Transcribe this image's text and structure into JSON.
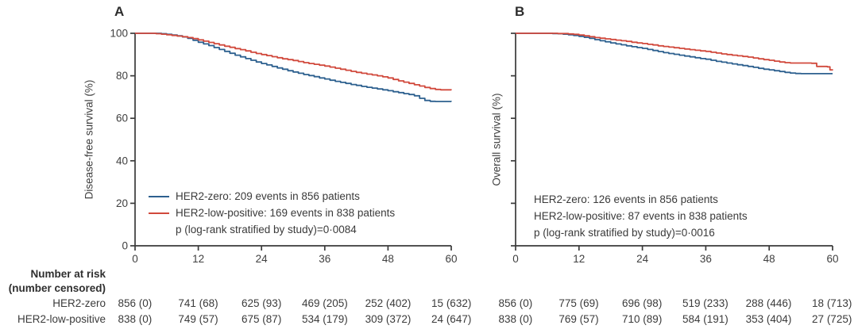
{
  "figure": {
    "panels": [
      {
        "label": "A",
        "y_axis_label": "Disease-free survival (%)",
        "legend": {
          "show_swatches": true,
          "items": [
            {
              "text": "HER2-zero: 209 events in 856 patients"
            },
            {
              "text": "HER2-low-positive: 169 events in 838 patients"
            }
          ],
          "p_text": "p (log-rank stratified by study)=0·0084"
        }
      },
      {
        "label": "B",
        "y_axis_label": "Overall survival (%)",
        "legend": {
          "show_swatches": false,
          "items": [
            {
              "text": "HER2-zero: 126 events in 856 patients"
            },
            {
              "text": "HER2-low-positive: 87 events in 838 patients"
            }
          ],
          "p_text": "p (log-rank stratified by study)=0·0016"
        }
      }
    ],
    "risk_table": {
      "header_line1": "Number at risk",
      "header_line2": "(number censored)",
      "row_labels": [
        "HER2-zero",
        "HER2-low-positive"
      ],
      "panels": [
        {
          "rows": [
            [
              "856 (0)",
              "741 (68)",
              "625 (93)",
              "469 (205)",
              "252 (402)",
              "15 (632)"
            ],
            [
              "838 (0)",
              "749 (57)",
              "675 (87)",
              "534 (179)",
              "309 (372)",
              "24 (647)"
            ]
          ]
        },
        {
          "rows": [
            [
              "856 (0)",
              "775 (69)",
              "696 (98)",
              "519 (233)",
              "288 (446)",
              "18 (713)"
            ],
            [
              "838 (0)",
              "769 (57)",
              "710 (89)",
              "584 (191)",
              "353 (404)",
              "27 (725)"
            ]
          ]
        }
      ]
    },
    "colors": {
      "axis": "#3a3a3a",
      "text": "#3b3b3b"
    }
  },
  "chart_data": [
    {
      "type": "line",
      "style": "kaplan-meier-step",
      "panel": "A",
      "title": "",
      "xlabel": "",
      "ylabel": "Disease-free survival (%)",
      "xlim": [
        0,
        60
      ],
      "ylim": [
        0,
        100
      ],
      "x_ticks": [
        0,
        12,
        24,
        36,
        48,
        60
      ],
      "y_ticks": [
        0,
        20,
        40,
        60,
        80,
        100
      ],
      "y_tick_labels_shown": true,
      "grid": false,
      "legend_position": "lower-left-inside",
      "p_value_text": "p (log-rank stratified by study)=0·0084",
      "series": [
        {
          "name": "HER2-zero",
          "color": "#2d608f",
          "events": 209,
          "n": 856,
          "points": [
            [
              0,
              100
            ],
            [
              5,
              99.8
            ],
            [
              6,
              99.5
            ],
            [
              7,
              99.2
            ],
            [
              8,
              98.8
            ],
            [
              9,
              98.3
            ],
            [
              10,
              97.6
            ],
            [
              11,
              96.7
            ],
            [
              12,
              95.8
            ],
            [
              13,
              95.0
            ],
            [
              14,
              94.2
            ],
            [
              15,
              93.3
            ],
            [
              16,
              92.4
            ],
            [
              17,
              91.5
            ],
            [
              18,
              90.6
            ],
            [
              19,
              89.7
            ],
            [
              20,
              88.9
            ],
            [
              21,
              88.1
            ],
            [
              22,
              87.3
            ],
            [
              23,
              86.5
            ],
            [
              24,
              85.8
            ],
            [
              25,
              85.1
            ],
            [
              26,
              84.4
            ],
            [
              27,
              83.7
            ],
            [
              28,
              83.1
            ],
            [
              29,
              82.4
            ],
            [
              30,
              81.8
            ],
            [
              31,
              81.2
            ],
            [
              32,
              80.6
            ],
            [
              33,
              80.1
            ],
            [
              34,
              79.6
            ],
            [
              35,
              79.0
            ],
            [
              36,
              78.5
            ],
            [
              37,
              77.9
            ],
            [
              38,
              77.4
            ],
            [
              39,
              76.9
            ],
            [
              40,
              76.4
            ],
            [
              41,
              75.9
            ],
            [
              42,
              75.5
            ],
            [
              43,
              75.0
            ],
            [
              44,
              74.6
            ],
            [
              45,
              74.2
            ],
            [
              46,
              73.8
            ],
            [
              47,
              73.4
            ],
            [
              48,
              73.0
            ],
            [
              49,
              72.5
            ],
            [
              50,
              72.1
            ],
            [
              51,
              71.6
            ],
            [
              52,
              71.2
            ],
            [
              53,
              70.6
            ],
            [
              54,
              69.4
            ],
            [
              55,
              68.4
            ],
            [
              56,
              68.0
            ],
            [
              57,
              67.9
            ],
            [
              60,
              67.8
            ]
          ]
        },
        {
          "name": "HER2-low-positive",
          "color": "#d1493c",
          "events": 169,
          "n": 838,
          "points": [
            [
              0,
              100
            ],
            [
              4,
              99.8
            ],
            [
              5,
              99.6
            ],
            [
              6,
              99.3
            ],
            [
              7,
              99.0
            ],
            [
              8,
              98.7
            ],
            [
              9,
              98.4
            ],
            [
              10,
              98.0
            ],
            [
              11,
              97.5
            ],
            [
              12,
              96.9
            ],
            [
              13,
              96.3
            ],
            [
              14,
              95.7
            ],
            [
              15,
              95.1
            ],
            [
              16,
              94.5
            ],
            [
              17,
              93.9
            ],
            [
              18,
              93.4
            ],
            [
              19,
              92.8
            ],
            [
              20,
              92.3
            ],
            [
              21,
              91.7
            ],
            [
              22,
              91.1
            ],
            [
              23,
              90.5
            ],
            [
              24,
              90.0
            ],
            [
              25,
              89.5
            ],
            [
              26,
              89.0
            ],
            [
              27,
              88.5
            ],
            [
              28,
              88.0
            ],
            [
              29,
              87.6
            ],
            [
              30,
              87.2
            ],
            [
              31,
              86.7
            ],
            [
              32,
              86.2
            ],
            [
              33,
              85.8
            ],
            [
              34,
              85.4
            ],
            [
              35,
              85.0
            ],
            [
              36,
              84.6
            ],
            [
              37,
              84.1
            ],
            [
              38,
              83.6
            ],
            [
              39,
              83.1
            ],
            [
              40,
              82.6
            ],
            [
              41,
              82.1
            ],
            [
              42,
              81.6
            ],
            [
              43,
              81.2
            ],
            [
              44,
              80.8
            ],
            [
              45,
              80.4
            ],
            [
              46,
              80.0
            ],
            [
              47,
              79.5
            ],
            [
              48,
              79.0
            ],
            [
              49,
              78.3
            ],
            [
              50,
              77.6
            ],
            [
              51,
              77.0
            ],
            [
              52,
              76.4
            ],
            [
              53,
              75.8
            ],
            [
              54,
              75.2
            ],
            [
              55,
              74.5
            ],
            [
              56,
              74.0
            ],
            [
              57,
              73.6
            ],
            [
              58,
              73.4
            ],
            [
              60,
              73.3
            ]
          ]
        }
      ]
    },
    {
      "type": "line",
      "style": "kaplan-meier-step",
      "panel": "B",
      "title": "",
      "xlabel": "",
      "ylabel": "Overall survival (%)",
      "xlim": [
        0,
        60
      ],
      "ylim": [
        0,
        100
      ],
      "x_ticks": [
        0,
        12,
        24,
        36,
        48,
        60
      ],
      "y_ticks": [
        0,
        20,
        40,
        60,
        80,
        100
      ],
      "y_tick_labels_shown": false,
      "grid": false,
      "legend_position": "lower-left-inside",
      "p_value_text": "p (log-rank stratified by study)=0·0016",
      "series": [
        {
          "name": "HER2-zero",
          "color": "#2d608f",
          "events": 126,
          "n": 856,
          "points": [
            [
              0,
              100
            ],
            [
              7,
              99.9
            ],
            [
              8,
              99.8
            ],
            [
              9,
              99.6
            ],
            [
              10,
              99.3
            ],
            [
              11,
              99.0
            ],
            [
              12,
              98.6
            ],
            [
              13,
              98.1
            ],
            [
              14,
              97.6
            ],
            [
              15,
              97.0
            ],
            [
              16,
              96.5
            ],
            [
              17,
              96.0
            ],
            [
              18,
              95.5
            ],
            [
              19,
              95.0
            ],
            [
              20,
              94.6
            ],
            [
              21,
              94.1
            ],
            [
              22,
              93.7
            ],
            [
              23,
              93.3
            ],
            [
              24,
              92.9
            ],
            [
              25,
              92.4
            ],
            [
              26,
              91.9
            ],
            [
              27,
              91.4
            ],
            [
              28,
              90.9
            ],
            [
              29,
              90.5
            ],
            [
              30,
              90.1
            ],
            [
              31,
              89.7
            ],
            [
              32,
              89.3
            ],
            [
              33,
              88.9
            ],
            [
              34,
              88.5
            ],
            [
              35,
              88.1
            ],
            [
              36,
              87.8
            ],
            [
              37,
              87.3
            ],
            [
              38,
              86.8
            ],
            [
              39,
              86.4
            ],
            [
              40,
              86.0
            ],
            [
              41,
              85.6
            ],
            [
              42,
              85.2
            ],
            [
              43,
              84.8
            ],
            [
              44,
              84.4
            ],
            [
              45,
              84.0
            ],
            [
              46,
              83.5
            ],
            [
              47,
              83.1
            ],
            [
              48,
              82.8
            ],
            [
              49,
              82.4
            ],
            [
              50,
              82.0
            ],
            [
              51,
              81.6
            ],
            [
              52,
              81.3
            ],
            [
              53,
              81.1
            ],
            [
              54,
              81.0
            ],
            [
              60,
              81.0
            ]
          ]
        },
        {
          "name": "HER2-low-positive",
          "color": "#d1493c",
          "events": 87,
          "n": 838,
          "points": [
            [
              0,
              100
            ],
            [
              8,
              99.9
            ],
            [
              10,
              99.7
            ],
            [
              11,
              99.5
            ],
            [
              12,
              99.2
            ],
            [
              13,
              98.8
            ],
            [
              14,
              98.4
            ],
            [
              15,
              98.0
            ],
            [
              16,
              97.7
            ],
            [
              17,
              97.4
            ],
            [
              18,
              97.1
            ],
            [
              19,
              96.8
            ],
            [
              20,
              96.5
            ],
            [
              21,
              96.2
            ],
            [
              22,
              95.8
            ],
            [
              23,
              95.5
            ],
            [
              24,
              95.2
            ],
            [
              25,
              94.8
            ],
            [
              26,
              94.5
            ],
            [
              27,
              94.1
            ],
            [
              28,
              93.8
            ],
            [
              29,
              93.5
            ],
            [
              30,
              93.2
            ],
            [
              31,
              92.9
            ],
            [
              32,
              92.6
            ],
            [
              33,
              92.3
            ],
            [
              34,
              92.0
            ],
            [
              35,
              91.7
            ],
            [
              36,
              91.5
            ],
            [
              37,
              91.1
            ],
            [
              38,
              90.7
            ],
            [
              39,
              90.3
            ],
            [
              40,
              90.0
            ],
            [
              41,
              89.7
            ],
            [
              42,
              89.4
            ],
            [
              43,
              89.1
            ],
            [
              44,
              88.8
            ],
            [
              45,
              88.4
            ],
            [
              46,
              88.0
            ],
            [
              47,
              87.6
            ],
            [
              48,
              87.3
            ],
            [
              49,
              86.9
            ],
            [
              50,
              86.5
            ],
            [
              51,
              86.2
            ],
            [
              52,
              86.0
            ],
            [
              56,
              85.9
            ],
            [
              57,
              84.4
            ],
            [
              59,
              84.2
            ],
            [
              59.5,
              82.8
            ],
            [
              60,
              82.6
            ]
          ]
        }
      ]
    }
  ]
}
